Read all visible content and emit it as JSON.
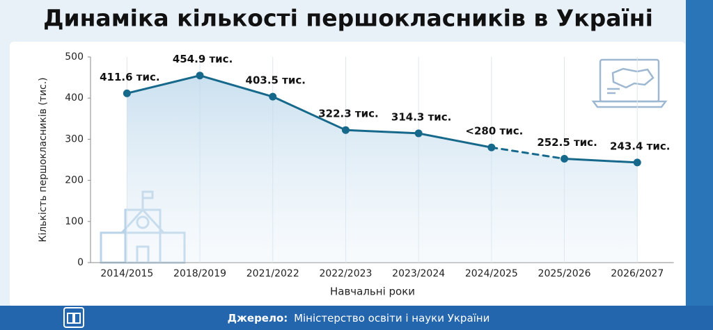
{
  "chart_data": {
    "type": "line",
    "title": "Динаміка кількості першокласників в Україні",
    "categories": [
      "2014/2015",
      "2018/2019",
      "2021/2022",
      "2022/2023",
      "2023/2024",
      "2024/2025",
      "2025/2026",
      "2026/2027"
    ],
    "values": [
      411.6,
      454.9,
      403.5,
      322.3,
      314.3,
      280,
      252.5,
      243.4
    ],
    "value_labels": [
      "411.6 тис.",
      "454.9 тис.",
      "403.5 тис.",
      "322.3 тис.",
      "314.3 тис.",
      "<280 тис.",
      "252.5 тис.",
      "243.4 тис."
    ],
    "segment_styles": [
      "solid",
      "solid",
      "solid",
      "solid",
      "solid",
      "dashed",
      "solid"
    ],
    "color": "#17698c",
    "ylim": [
      0,
      500
    ],
    "yticks": [
      0,
      100,
      200,
      300,
      400,
      500
    ],
    "ylabel": "Кількість першокласників (тис.)",
    "xlabel": "Навчальні роки",
    "grid": true,
    "source_label": "Джерело:",
    "source": "Міністерство освіти і науки України"
  }
}
